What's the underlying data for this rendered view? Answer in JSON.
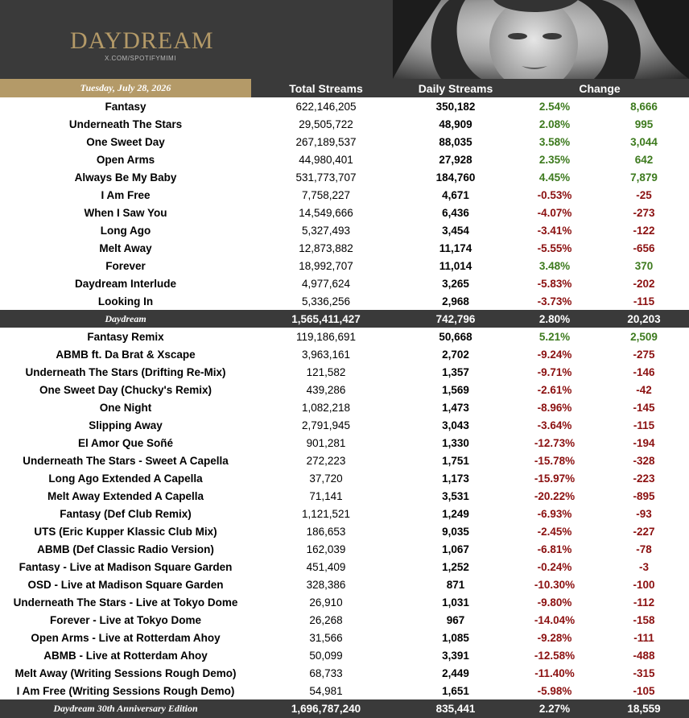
{
  "header": {
    "brand_title": "DAYDREAM",
    "brand_subtitle": "X.COM/SPOTIFYMIMI"
  },
  "columns": {
    "date": "Tuesday, July 28, 2026",
    "total": "Total Streams",
    "daily": "Daily Streams",
    "change": "Change"
  },
  "album1": {
    "rows": [
      {
        "name": "Fantasy",
        "total": "622,146,205",
        "daily": "350,182",
        "pct": "2.54%",
        "chg": "8,666",
        "sign": "pos"
      },
      {
        "name": "Underneath The Stars",
        "total": "29,505,722",
        "daily": "48,909",
        "pct": "2.08%",
        "chg": "995",
        "sign": "pos"
      },
      {
        "name": "One Sweet Day",
        "total": "267,189,537",
        "daily": "88,035",
        "pct": "3.58%",
        "chg": "3,044",
        "sign": "pos"
      },
      {
        "name": "Open Arms",
        "total": "44,980,401",
        "daily": "27,928",
        "pct": "2.35%",
        "chg": "642",
        "sign": "pos"
      },
      {
        "name": "Always Be My Baby",
        "total": "531,773,707",
        "daily": "184,760",
        "pct": "4.45%",
        "chg": "7,879",
        "sign": "pos"
      },
      {
        "name": "I Am Free",
        "total": "7,758,227",
        "daily": "4,671",
        "pct": "-0.53%",
        "chg": "-25",
        "sign": "neg"
      },
      {
        "name": "When I Saw You",
        "total": "14,549,666",
        "daily": "6,436",
        "pct": "-4.07%",
        "chg": "-273",
        "sign": "neg"
      },
      {
        "name": "Long Ago",
        "total": "5,327,493",
        "daily": "3,454",
        "pct": "-3.41%",
        "chg": "-122",
        "sign": "neg"
      },
      {
        "name": "Melt Away",
        "total": "12,873,882",
        "daily": "11,174",
        "pct": "-5.55%",
        "chg": "-656",
        "sign": "neg"
      },
      {
        "name": "Forever",
        "total": "18,992,707",
        "daily": "11,014",
        "pct": "3.48%",
        "chg": "370",
        "sign": "pos"
      },
      {
        "name": "Daydream Interlude",
        "total": "4,977,624",
        "daily": "3,265",
        "pct": "-5.83%",
        "chg": "-202",
        "sign": "neg"
      },
      {
        "name": "Looking In",
        "total": "5,336,256",
        "daily": "2,968",
        "pct": "-3.73%",
        "chg": "-115",
        "sign": "neg"
      }
    ],
    "total": {
      "name": "Daydream",
      "total": "1,565,411,427",
      "daily": "742,796",
      "pct": "2.80%",
      "chg": "20,203"
    }
  },
  "album2": {
    "rows": [
      {
        "name": "Fantasy Remix",
        "total": "119,186,691",
        "daily": "50,668",
        "pct": "5.21%",
        "chg": "2,509",
        "sign": "pos"
      },
      {
        "name": "ABMB ft. Da Brat & Xscape",
        "total": "3,963,161",
        "daily": "2,702",
        "pct": "-9.24%",
        "chg": "-275",
        "sign": "neg"
      },
      {
        "name": "Underneath The Stars (Drifting Re-Mix)",
        "total": "121,582",
        "daily": "1,357",
        "pct": "-9.71%",
        "chg": "-146",
        "sign": "neg"
      },
      {
        "name": "One Sweet Day (Chucky's Remix)",
        "total": "439,286",
        "daily": "1,569",
        "pct": "-2.61%",
        "chg": "-42",
        "sign": "neg"
      },
      {
        "name": "One Night",
        "total": "1,082,218",
        "daily": "1,473",
        "pct": "-8.96%",
        "chg": "-145",
        "sign": "neg"
      },
      {
        "name": "Slipping Away",
        "total": "2,791,945",
        "daily": "3,043",
        "pct": "-3.64%",
        "chg": "-115",
        "sign": "neg"
      },
      {
        "name": "El Amor Que Soñé",
        "total": "901,281",
        "daily": "1,330",
        "pct": "-12.73%",
        "chg": "-194",
        "sign": "neg"
      },
      {
        "name": "Underneath The Stars - Sweet A Capella",
        "total": "272,223",
        "daily": "1,751",
        "pct": "-15.78%",
        "chg": "-328",
        "sign": "neg"
      },
      {
        "name": "Long Ago Extended A Capella",
        "total": "37,720",
        "daily": "1,173",
        "pct": "-15.97%",
        "chg": "-223",
        "sign": "neg"
      },
      {
        "name": "Melt Away Extended A Capella",
        "total": "71,141",
        "daily": "3,531",
        "pct": "-20.22%",
        "chg": "-895",
        "sign": "neg"
      },
      {
        "name": "Fantasy (Def Club Remix)",
        "total": "1,121,521",
        "daily": "1,249",
        "pct": "-6.93%",
        "chg": "-93",
        "sign": "neg"
      },
      {
        "name": "UTS (Eric Kupper Klassic Club Mix)",
        "total": "186,653",
        "daily": "9,035",
        "pct": "-2.45%",
        "chg": "-227",
        "sign": "neg"
      },
      {
        "name": "ABMB (Def Classic Radio Version)",
        "total": "162,039",
        "daily": "1,067",
        "pct": "-6.81%",
        "chg": "-78",
        "sign": "neg"
      },
      {
        "name": "Fantasy - Live at Madison Square Garden",
        "total": "451,409",
        "daily": "1,252",
        "pct": "-0.24%",
        "chg": "-3",
        "sign": "neg"
      },
      {
        "name": "OSD - Live at Madison Square Garden",
        "total": "328,386",
        "daily": "871",
        "pct": "-10.30%",
        "chg": "-100",
        "sign": "neg"
      },
      {
        "name": "Underneath The Stars - Live at Tokyo Dome",
        "total": "26,910",
        "daily": "1,031",
        "pct": "-9.80%",
        "chg": "-112",
        "sign": "neg"
      },
      {
        "name": "Forever - Live at Tokyo Dome",
        "total": "26,268",
        "daily": "967",
        "pct": "-14.04%",
        "chg": "-158",
        "sign": "neg"
      },
      {
        "name": "Open Arms - Live at Rotterdam Ahoy",
        "total": "31,566",
        "daily": "1,085",
        "pct": "-9.28%",
        "chg": "-111",
        "sign": "neg"
      },
      {
        "name": "ABMB - Live at Rotterdam Ahoy",
        "total": "50,099",
        "daily": "3,391",
        "pct": "-12.58%",
        "chg": "-488",
        "sign": "neg"
      },
      {
        "name": "Melt Away (Writing Sessions Rough Demo)",
        "total": "68,733",
        "daily": "2,449",
        "pct": "-11.40%",
        "chg": "-315",
        "sign": "neg"
      },
      {
        "name": "I Am Free (Writing Sessions Rough Demo)",
        "total": "54,981",
        "daily": "1,651",
        "pct": "-5.98%",
        "chg": "-105",
        "sign": "neg"
      }
    ],
    "total": {
      "name": "Daydream 30th Anniversary Edition",
      "total": "1,696,787,240",
      "daily": "835,441",
      "pct": "2.27%",
      "chg": "18,559"
    }
  },
  "colors": {
    "accent_gold": "#b49a68",
    "positive": "#3d7a1e",
    "negative": "#8b1010",
    "dark": "#3a3a3a"
  }
}
